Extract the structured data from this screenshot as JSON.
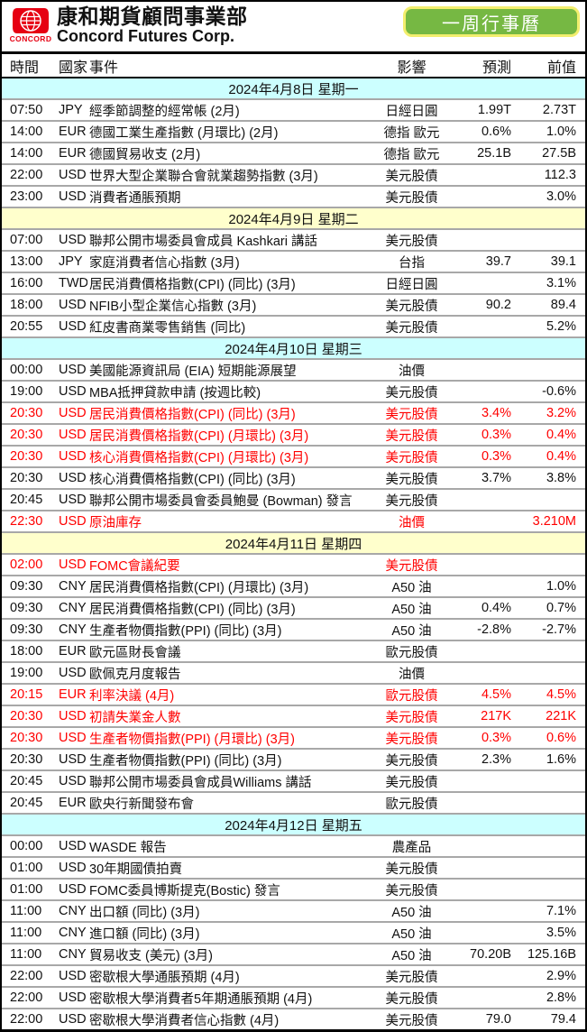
{
  "header": {
    "brand_zh": "康和期貨顧問事業部",
    "brand_en": "Concord Futures Corp.",
    "logo_word": "CONCORD",
    "logo_color": "#E60012",
    "badge": {
      "label": "一周行事曆",
      "bg": "#76B843",
      "border": "#F2EE6E",
      "text_color": "#FFFFFF"
    }
  },
  "colors": {
    "highlight_text": "#FF0000",
    "date_row_cyan": "#CCFFFF",
    "date_row_yellow": "#FFFFCC",
    "row_divider": "#A8A8A8"
  },
  "table": {
    "columns": [
      "時間",
      "國家",
      "事件",
      "影響",
      "預測",
      "前值"
    ],
    "days": [
      {
        "date": "2024年4月8日 星期一",
        "bg": "#CCFFFF",
        "rows": [
          {
            "time": "07:50",
            "country": "JPY",
            "event": "經季節調整的經常帳 (2月)",
            "impact": "日經日圓",
            "forecast": "1.99T",
            "previous": "2.73T",
            "highlight": false
          },
          {
            "time": "14:00",
            "country": "EUR",
            "event": "德國工業生產指數 (月環比) (2月)",
            "impact": "德指 歐元",
            "forecast": "0.6%",
            "previous": "1.0%",
            "highlight": false
          },
          {
            "time": "14:00",
            "country": "EUR",
            "event": "德國貿易收支 (2月)",
            "impact": "德指 歐元",
            "forecast": "25.1B",
            "previous": "27.5B",
            "highlight": false
          },
          {
            "time": "22:00",
            "country": "USD",
            "event": "世界大型企業聯合會就業趨勢指數 (3月)",
            "impact": "美元股債",
            "forecast": "",
            "previous": "112.3",
            "highlight": false
          },
          {
            "time": "23:00",
            "country": "USD",
            "event": "消費者通脹預期",
            "impact": "美元股債",
            "forecast": "",
            "previous": "3.0%",
            "highlight": false
          }
        ]
      },
      {
        "date": "2024年4月9日 星期二",
        "bg": "#FFFFCC",
        "rows": [
          {
            "time": "07:00",
            "country": "USD",
            "event": "聯邦公開市場委員會成員 Kashkari 講話",
            "impact": "美元股債",
            "forecast": "",
            "previous": "",
            "highlight": false
          },
          {
            "time": "13:00",
            "country": "JPY",
            "event": "家庭消費者信心指數 (3月)",
            "impact": "台指",
            "forecast": "39.7",
            "previous": "39.1",
            "highlight": false
          },
          {
            "time": "16:00",
            "country": "TWD",
            "event": "居民消費價格指數(CPI) (同比) (3月)",
            "impact": "日經日圓",
            "forecast": "",
            "previous": "3.1%",
            "highlight": false
          },
          {
            "time": "18:00",
            "country": "USD",
            "event": "NFIB小型企業信心指數 (3月)",
            "impact": "美元股債",
            "forecast": "90.2",
            "previous": "89.4",
            "highlight": false
          },
          {
            "time": "20:55",
            "country": "USD",
            "event": "紅皮書商業零售銷售 (同比)",
            "impact": "美元股債",
            "forecast": "",
            "previous": "5.2%",
            "highlight": false
          }
        ]
      },
      {
        "date": "2024年4月10日 星期三",
        "bg": "#CCFFFF",
        "rows": [
          {
            "time": "00:00",
            "country": "USD",
            "event": "美國能源資訊局 (EIA) 短期能源展望",
            "impact": "油價",
            "forecast": "",
            "previous": "",
            "highlight": false
          },
          {
            "time": "19:00",
            "country": "USD",
            "event": "MBA抵押貸款申請 (按週比較)",
            "impact": "美元股債",
            "forecast": "",
            "previous": "-0.6%",
            "highlight": false
          },
          {
            "time": "20:30",
            "country": "USD",
            "event": "居民消費價格指數(CPI) (同比) (3月)",
            "impact": "美元股債",
            "forecast": "3.4%",
            "previous": "3.2%",
            "highlight": true
          },
          {
            "time": "20:30",
            "country": "USD",
            "event": "居民消費價格指數(CPI) (月環比) (3月)",
            "impact": "美元股債",
            "forecast": "0.3%",
            "previous": "0.4%",
            "highlight": true
          },
          {
            "time": "20:30",
            "country": "USD",
            "event": "核心消費價格指數(CPI) (月環比) (3月)",
            "impact": "美元股債",
            "forecast": "0.3%",
            "previous": "0.4%",
            "highlight": true
          },
          {
            "time": "20:30",
            "country": "USD",
            "event": "核心消費價格指數(CPI) (同比) (3月)",
            "impact": "美元股債",
            "forecast": "3.7%",
            "previous": "3.8%",
            "highlight": false
          },
          {
            "time": "20:45",
            "country": "USD",
            "event": "聯邦公開市場委員會委員鮑曼 (Bowman) 發言",
            "impact": "美元股債",
            "forecast": "",
            "previous": "",
            "highlight": false
          },
          {
            "time": "22:30",
            "country": "USD",
            "event": "原油庫存",
            "impact": "油價",
            "forecast": "",
            "previous": "3.210M",
            "highlight": true
          }
        ]
      },
      {
        "date": "2024年4月11日 星期四",
        "bg": "#FFFFCC",
        "rows": [
          {
            "time": "02:00",
            "country": "USD",
            "event": "FOMC會議紀要",
            "impact": "美元股債",
            "forecast": "",
            "previous": "",
            "highlight": true
          },
          {
            "time": "09:30",
            "country": "CNY",
            "event": "居民消費價格指數(CPI) (月環比) (3月)",
            "impact": "A50 油",
            "forecast": "",
            "previous": "1.0%",
            "highlight": false
          },
          {
            "time": "09:30",
            "country": "CNY",
            "event": "居民消費價格指數(CPI) (同比) (3月)",
            "impact": "A50 油",
            "forecast": "0.4%",
            "previous": "0.7%",
            "highlight": false
          },
          {
            "time": "09:30",
            "country": "CNY",
            "event": "生產者物價指數(PPI) (同比) (3月)",
            "impact": "A50 油",
            "forecast": "-2.8%",
            "previous": "-2.7%",
            "highlight": false
          },
          {
            "time": "18:00",
            "country": "EUR",
            "event": "歐元區財長會議",
            "impact": "歐元股債",
            "forecast": "",
            "previous": "",
            "highlight": false
          },
          {
            "time": "19:00",
            "country": "USD",
            "event": "歐佩克月度報告",
            "impact": "油價",
            "forecast": "",
            "previous": "",
            "highlight": false
          },
          {
            "time": "20:15",
            "country": "EUR",
            "event": "利率決議 (4月)",
            "impact": "歐元股債",
            "forecast": "4.5%",
            "previous": "4.5%",
            "highlight": true
          },
          {
            "time": "20:30",
            "country": "USD",
            "event": "初請失業金人數",
            "impact": "美元股債",
            "forecast": "217K",
            "previous": "221K",
            "highlight": true
          },
          {
            "time": "20:30",
            "country": "USD",
            "event": "生產者物價指數(PPI) (月環比) (3月)",
            "impact": "美元股債",
            "forecast": "0.3%",
            "previous": "0.6%",
            "highlight": true
          },
          {
            "time": "20:30",
            "country": "USD",
            "event": "生產者物價指數(PPI) (同比) (3月)",
            "impact": "美元股債",
            "forecast": "2.3%",
            "previous": "1.6%",
            "highlight": false
          },
          {
            "time": "20:45",
            "country": "USD",
            "event": "聯邦公開市場委員會成員Williams 講話",
            "impact": "美元股債",
            "forecast": "",
            "previous": "",
            "highlight": false
          },
          {
            "time": "20:45",
            "country": "EUR",
            "event": "歐央行新聞發布會",
            "impact": "歐元股債",
            "forecast": "",
            "previous": "",
            "highlight": false
          }
        ]
      },
      {
        "date": "2024年4月12日 星期五",
        "bg": "#CCFFFF",
        "rows": [
          {
            "time": "00:00",
            "country": "USD",
            "event": "WASDE 報告",
            "impact": "農產品",
            "forecast": "",
            "previous": "",
            "highlight": false
          },
          {
            "time": "01:00",
            "country": "USD",
            "event": "30年期國債拍賣",
            "impact": "美元股債",
            "forecast": "",
            "previous": "",
            "highlight": false
          },
          {
            "time": "01:00",
            "country": "USD",
            "event": "FOMC委員博斯提克(Bostic) 發言",
            "impact": "美元股債",
            "forecast": "",
            "previous": "",
            "highlight": false
          },
          {
            "time": "11:00",
            "country": "CNY",
            "event": "出口額 (同比) (3月)",
            "impact": "A50 油",
            "forecast": "",
            "previous": "7.1%",
            "highlight": false
          },
          {
            "time": "11:00",
            "country": "CNY",
            "event": "進口額 (同比) (3月)",
            "impact": "A50 油",
            "forecast": "",
            "previous": "3.5%",
            "highlight": false
          },
          {
            "time": "11:00",
            "country": "CNY",
            "event": "貿易收支 (美元) (3月)",
            "impact": "A50 油",
            "forecast": "70.20B",
            "previous": "125.16B",
            "highlight": false
          },
          {
            "time": "22:00",
            "country": "USD",
            "event": "密歇根大學通脹預期 (4月)",
            "impact": "美元股債",
            "forecast": "",
            "previous": "2.9%",
            "highlight": false
          },
          {
            "time": "22:00",
            "country": "USD",
            "event": "密歇根大學消費者5年期通脹預期 (4月)",
            "impact": "美元股債",
            "forecast": "",
            "previous": "2.8%",
            "highlight": false
          },
          {
            "time": "22:00",
            "country": "USD",
            "event": "密歇根大學消費者信心指數 (4月)",
            "impact": "美元股債",
            "forecast": "79.0",
            "previous": "79.4",
            "highlight": false
          }
        ]
      }
    ]
  }
}
